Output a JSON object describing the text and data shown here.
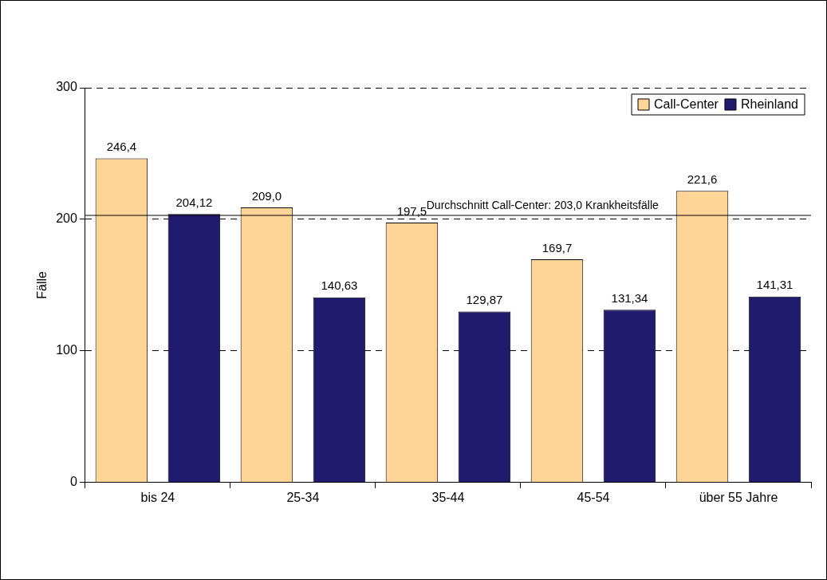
{
  "chart_data": {
    "type": "bar",
    "ylabel": "Fälle",
    "categories": [
      "bis 24",
      "25-34",
      "35-44",
      "45-54",
      "über 55 Jahre"
    ],
    "series": [
      {
        "name": "Call-Center",
        "color": "#ffd497",
        "values": [
          246.4,
          209.0,
          197.5,
          169.7,
          221.6
        ],
        "value_labels": [
          "246,4",
          "209,0",
          "197,5",
          "169,7",
          "221,6"
        ]
      },
      {
        "name": "Rheinland",
        "color": "#211b6e",
        "values": [
          204.12,
          140.63,
          129.87,
          131.34,
          141.31
        ],
        "value_labels": [
          "204,12",
          "140,63",
          "129,87",
          "131,34",
          "141,31"
        ]
      }
    ],
    "ylim": [
      0,
      300
    ],
    "yticks": [
      0,
      100,
      200,
      300
    ],
    "grid": "y",
    "legend": "top right",
    "ref_lines": [
      {
        "axis": "y",
        "value": 203,
        "label": "Durchschnitt Call-Center: 203,0 Krankheitsfälle",
        "color": "#000000",
        "line_style": "solid"
      }
    ]
  }
}
